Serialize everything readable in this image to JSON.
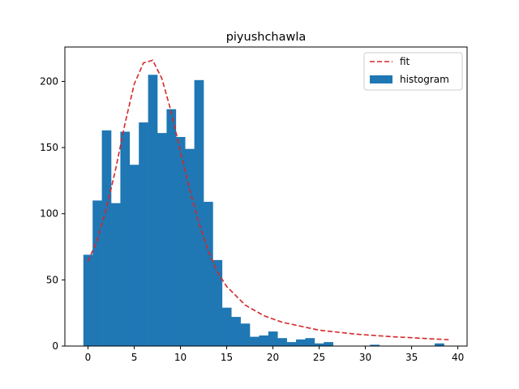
{
  "chart_data": {
    "type": "bar",
    "title": "piyushchawla",
    "xlabel": "",
    "ylabel": "",
    "xlim": [
      -2.5,
      41.0
    ],
    "ylim": [
      0,
      226
    ],
    "xticks": [
      0,
      5,
      10,
      15,
      20,
      25,
      30,
      35,
      40
    ],
    "yticks": [
      0,
      50,
      100,
      150,
      200
    ],
    "grid": false,
    "legend_position": "top-right",
    "colors": {
      "histogram": "#1f77b4",
      "fit": "#d62728"
    },
    "series": [
      {
        "name": "histogram",
        "kind": "bar",
        "bin_start": -0.5,
        "bin_width": 1.0,
        "values": [
          69,
          110,
          163,
          108,
          162,
          137,
          169,
          205,
          161,
          179,
          158,
          149,
          201,
          109,
          65,
          29,
          22,
          17,
          7,
          8,
          11,
          6,
          3,
          5,
          6,
          2,
          3,
          0,
          0,
          0,
          0,
          1,
          0,
          0,
          0,
          0,
          0,
          0,
          2
        ]
      },
      {
        "name": "fit",
        "kind": "line",
        "style": "dashed",
        "x": [
          0,
          1,
          2,
          3,
          4,
          5,
          6,
          7,
          8,
          9,
          10,
          11,
          12,
          13,
          14,
          15,
          17,
          19,
          21,
          23,
          25,
          27,
          29,
          31,
          33,
          35,
          37,
          39
        ],
        "y": [
          64,
          80,
          104,
          134,
          168,
          198,
          214,
          216,
          202,
          177,
          147,
          118,
          93,
          72,
          56,
          45,
          31,
          23,
          18,
          15,
          12,
          10.5,
          9,
          8,
          7,
          6.3,
          5.5,
          4.8
        ]
      }
    ]
  }
}
